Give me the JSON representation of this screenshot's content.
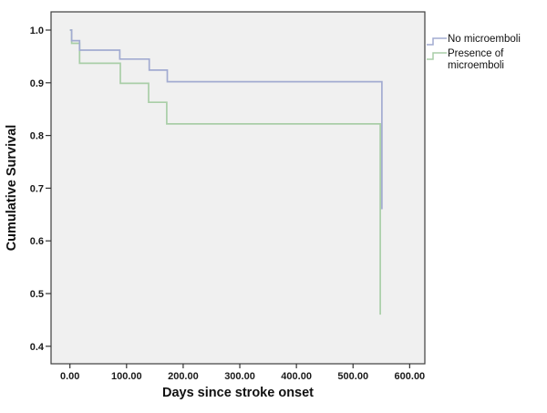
{
  "chart_data": {
    "type": "line",
    "subtype": "kaplan-meier-step",
    "title": "",
    "xlabel": "Days since stroke onset",
    "ylabel": "Cumulative Survival",
    "xlim": [
      -33,
      628
    ],
    "ylim": [
      0.37,
      1.035
    ],
    "grid": false,
    "legend_position": "outside-top-right",
    "x_ticks": {
      "values": [
        0,
        100,
        200,
        300,
        400,
        500,
        600
      ],
      "labels": [
        "0.00",
        "100.00",
        "200.00",
        "300.00",
        "400.00",
        "500.00",
        "600.00"
      ]
    },
    "y_ticks": {
      "values": [
        1.0,
        0.9,
        0.8,
        0.7,
        0.6,
        0.5,
        0.4
      ],
      "labels": [
        "1.0",
        "0.9",
        "0.8",
        "0.7",
        "0.6",
        "0.5",
        "0.4"
      ]
    },
    "series": [
      {
        "id": "no-microemboli",
        "name": "No microemboli",
        "color": "#a2abd1",
        "steps_comment": "pairs of [day, cumulative survival after drop at that day]",
        "steps": [
          [
            0,
            1.0
          ],
          [
            3,
            0.98
          ],
          [
            17,
            0.962
          ],
          [
            88,
            0.945
          ],
          [
            140,
            0.924
          ],
          [
            172,
            0.902
          ],
          [
            551,
            0.66
          ]
        ]
      },
      {
        "id": "presence-of-microemboli",
        "name": "Presence of microemboli",
        "color": "#a9cea7",
        "steps_comment": "pairs of [day, cumulative survival after drop at that day]",
        "steps": [
          [
            0,
            1.0
          ],
          [
            3,
            0.975
          ],
          [
            17,
            0.937
          ],
          [
            89,
            0.899
          ],
          [
            139,
            0.863
          ],
          [
            171,
            0.822
          ],
          [
            548,
            0.46
          ]
        ]
      }
    ]
  },
  "legend": {
    "items": [
      {
        "label": "No microemboli",
        "color": "#a2abd1"
      },
      {
        "label": "Presence of microemboli",
        "color": "#a9cea7"
      }
    ]
  },
  "colors": {
    "plot_background": "#f0f0f0",
    "frame": "#3e3e3e",
    "tick": "#333333",
    "text": "#1a1a1a",
    "page_background": "#ffffff"
  }
}
